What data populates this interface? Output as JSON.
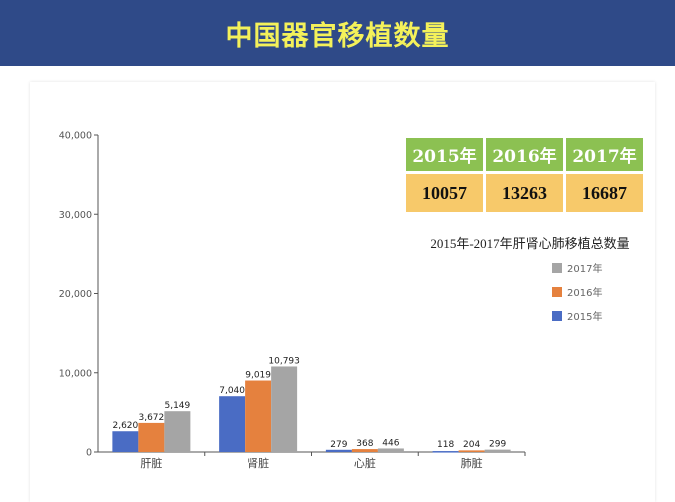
{
  "header": {
    "title": "中国器官移植数量"
  },
  "summary_table": {
    "years": [
      "2015年",
      "2016年",
      "2017年"
    ],
    "totals": [
      "10057",
      "13263",
      "16687"
    ]
  },
  "chart_data": {
    "type": "bar",
    "title": "2015年-2017年肝肾心肺移植总数量",
    "categories": [
      "肝脏",
      "肾脏",
      "心脏",
      "肺脏"
    ],
    "series": [
      {
        "name": "2015年",
        "color": "#4a6cc4",
        "values": [
          2620,
          7040,
          279,
          118
        ],
        "labels": [
          "2,620",
          "7,040",
          "279",
          "118"
        ]
      },
      {
        "name": "2016年",
        "color": "#e5813e",
        "values": [
          3672,
          9019,
          368,
          204
        ],
        "labels": [
          "3,672",
          "9,019",
          "368",
          "204"
        ]
      },
      {
        "name": "2017年",
        "color": "#a5a5a5",
        "values": [
          5149,
          10793,
          446,
          299
        ],
        "labels": [
          "5,149",
          "10,793",
          "446",
          "299"
        ]
      }
    ],
    "yticks": [
      0,
      10000,
      20000,
      30000,
      40000
    ],
    "ytick_labels": [
      "0",
      "10,000",
      "20,000",
      "30,000",
      "40,000"
    ],
    "ylim": [
      0,
      40000
    ],
    "legend_position": "right",
    "grid": false
  }
}
